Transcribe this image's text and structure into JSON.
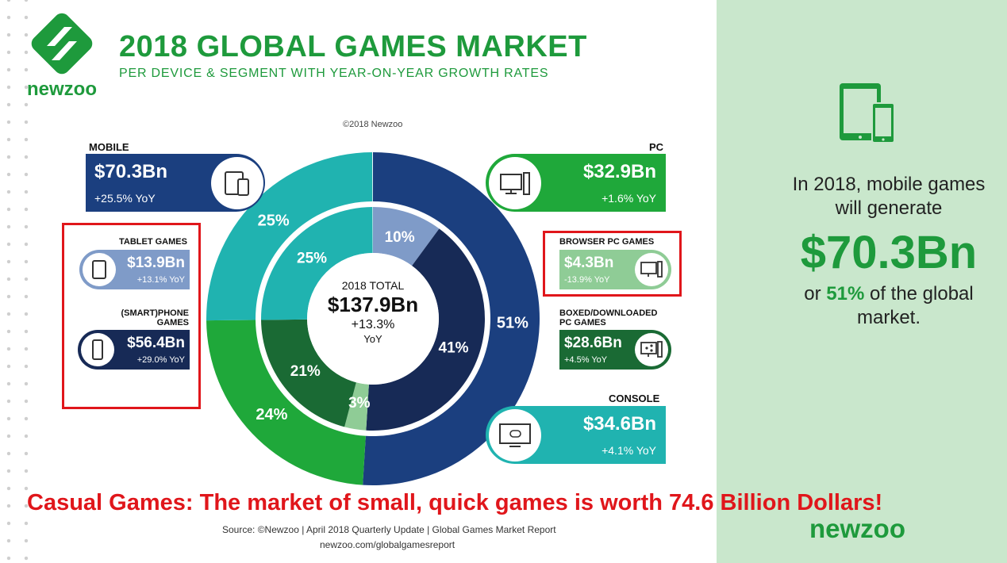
{
  "header": {
    "logo_text": "newzoo",
    "title": "2018 GLOBAL GAMES MARKET",
    "subtitle": "PER DEVICE & SEGMENT WITH YEAR-ON-YEAR GROWTH RATES",
    "copyright": "©2018 Newzoo"
  },
  "segments": {
    "mobile": {
      "label": "MOBILE",
      "amount": "$70.3Bn",
      "yoy": "+25.5% YoY",
      "color": "#1b3f7f"
    },
    "pc": {
      "label": "PC",
      "amount": "$32.9Bn",
      "yoy": "+1.6% YoY",
      "color": "#1fa83a"
    },
    "console": {
      "label": "CONSOLE",
      "amount": "$34.6Bn",
      "yoy": "+4.1% YoY",
      "color": "#20b3b0"
    },
    "tablet": {
      "label": "TABLET GAMES",
      "amount": "$13.9Bn",
      "yoy": "+13.1% YoY",
      "color": "#7f9bc8"
    },
    "phone": {
      "label_line1": "(SMART)PHONE",
      "label_line2": "GAMES",
      "amount": "$56.4Bn",
      "yoy": "+29.0% YoY",
      "color": "#172a56"
    },
    "browser": {
      "label": "BROWSER PC GAMES",
      "amount": "$4.3Bn",
      "yoy": "-13.9% YoY",
      "color": "#8fcc96"
    },
    "boxed": {
      "label_line1": "BOXED/DOWNLOADED",
      "label_line2": "PC GAMES",
      "amount": "$28.6Bn",
      "yoy": "+4.5% YoY",
      "color": "#1a6a34"
    }
  },
  "center": {
    "line1": "2018 TOTAL",
    "total": "$137.9Bn",
    "growth": "+13.3%",
    "line4": "YoY"
  },
  "chart_data": {
    "type": "pie",
    "total": 137.9,
    "outer_ring": [
      {
        "name": "Mobile",
        "value": 70.3,
        "percent_label": "51%",
        "color": "#1b3f7f"
      },
      {
        "name": "PC",
        "value": 32.9,
        "percent_label": "24%",
        "color": "#1fa83a"
      },
      {
        "name": "Console",
        "value": 34.6,
        "percent_label": "25%",
        "color": "#20b3b0"
      }
    ],
    "inner_ring": [
      {
        "name": "Tablet",
        "value": 13.9,
        "percent_label": "10%",
        "color": "#7f9bc8"
      },
      {
        "name": "(Smart)phone",
        "value": 56.4,
        "percent_label": "41%",
        "color": "#172a56"
      },
      {
        "name": "Browser PC",
        "value": 4.3,
        "percent_label": "3%",
        "color": "#8fcc96"
      },
      {
        "name": "Boxed/Downloaded PC",
        "value": 28.6,
        "percent_label": "21%",
        "color": "#1a6a34"
      },
      {
        "name": "Console",
        "value": 34.6,
        "percent_label": "25%",
        "color": "#20b3b0"
      }
    ]
  },
  "side_panel": {
    "line1": "In 2018, mobile games",
    "line2": "will generate",
    "big_amount": "$70.3Bn",
    "line3_prefix": "or",
    "line3_highlight": "51%",
    "line3_suffix": "of the global",
    "line4": "market."
  },
  "banner": "Casual Games: The market of small, quick games is worth 74.6 Billion Dollars!",
  "footer": {
    "source": "Source: ©Newzoo | April 2018 Quarterly Update | Global Games Market Report",
    "url": "newzoo.com/globalgamesreport",
    "logo_text": "newzoo"
  },
  "colors": {
    "brand_green": "#1e9a3c",
    "highlight_red": "#e0161b",
    "panel_bg": "#c9e7cc"
  }
}
